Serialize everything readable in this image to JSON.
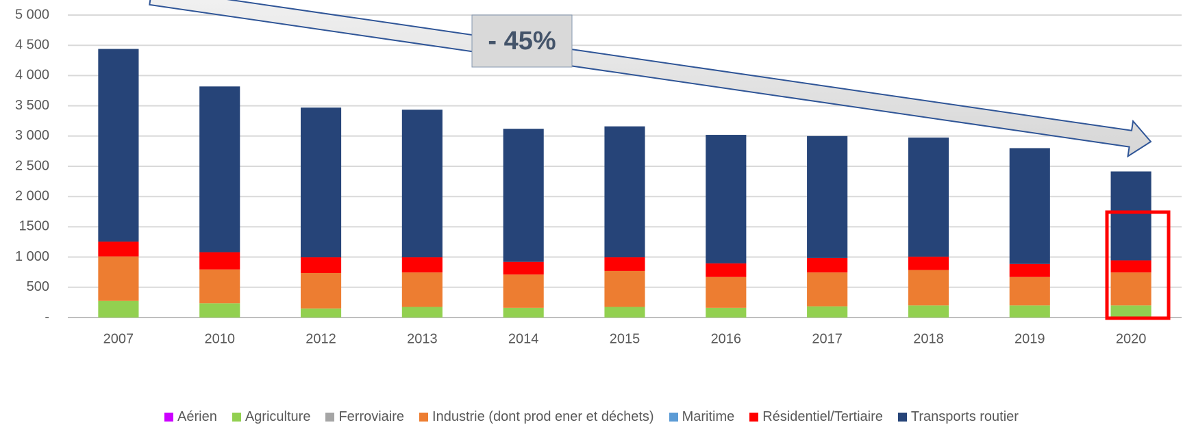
{
  "chart_data": {
    "type": "stacked_bar",
    "categories": [
      "2007",
      "2010",
      "2012",
      "2013",
      "2014",
      "2015",
      "2016",
      "2017",
      "2018",
      "2019",
      "2020"
    ],
    "series": [
      {
        "name": "Aérien",
        "color": "#cc00ff",
        "values": [
          0,
          0,
          0,
          0,
          0,
          0,
          0,
          0,
          0,
          0,
          0
        ]
      },
      {
        "name": "Agriculture",
        "color": "#92d050",
        "values": [
          275,
          235,
          150,
          175,
          160,
          175,
          160,
          185,
          200,
          200,
          200
        ]
      },
      {
        "name": "Ferroviaire",
        "color": "#a5a5a5",
        "values": [
          0,
          0,
          0,
          0,
          0,
          0,
          0,
          0,
          0,
          0,
          0
        ]
      },
      {
        "name": "Industrie (dont prod  ener et déchets)",
        "color": "#ed7d31",
        "values": [
          735,
          560,
          585,
          570,
          550,
          595,
          510,
          560,
          585,
          470,
          545
        ]
      },
      {
        "name": "Maritime",
        "color": "#5b9bd5",
        "values": [
          0,
          0,
          0,
          0,
          0,
          0,
          0,
          0,
          0,
          0,
          0
        ]
      },
      {
        "name": "Résidentiel/Tertiaire",
        "color": "#ff0000",
        "values": [
          245,
          285,
          260,
          250,
          210,
          225,
          225,
          240,
          220,
          215,
          200
        ]
      },
      {
        "name": "Transports routier",
        "color": "#264478",
        "values": [
          3185,
          2740,
          2475,
          2440,
          2200,
          2165,
          2125,
          2015,
          1970,
          1915,
          1470
        ]
      }
    ],
    "ylim": [
      0,
      5000
    ],
    "yticks": [
      {
        "value": 0,
        "label": "-"
      },
      500,
      {
        "value": 1000,
        "label": "1 000"
      },
      {
        "value": 1500,
        "label": "1500"
      },
      {
        "value": 2000,
        "label": "2 000"
      },
      {
        "value": 2500,
        "label": "2 500"
      },
      {
        "value": 3000,
        "label": "3 000"
      },
      {
        "value": 3500,
        "label": "3 500"
      },
      {
        "value": 4000,
        "label": "4 000"
      },
      {
        "value": 4500,
        "label": "4 500"
      },
      {
        "value": 5000,
        "label": "5 000"
      }
    ],
    "grid": true,
    "legend": "bottom",
    "annotation": "- 45%"
  }
}
